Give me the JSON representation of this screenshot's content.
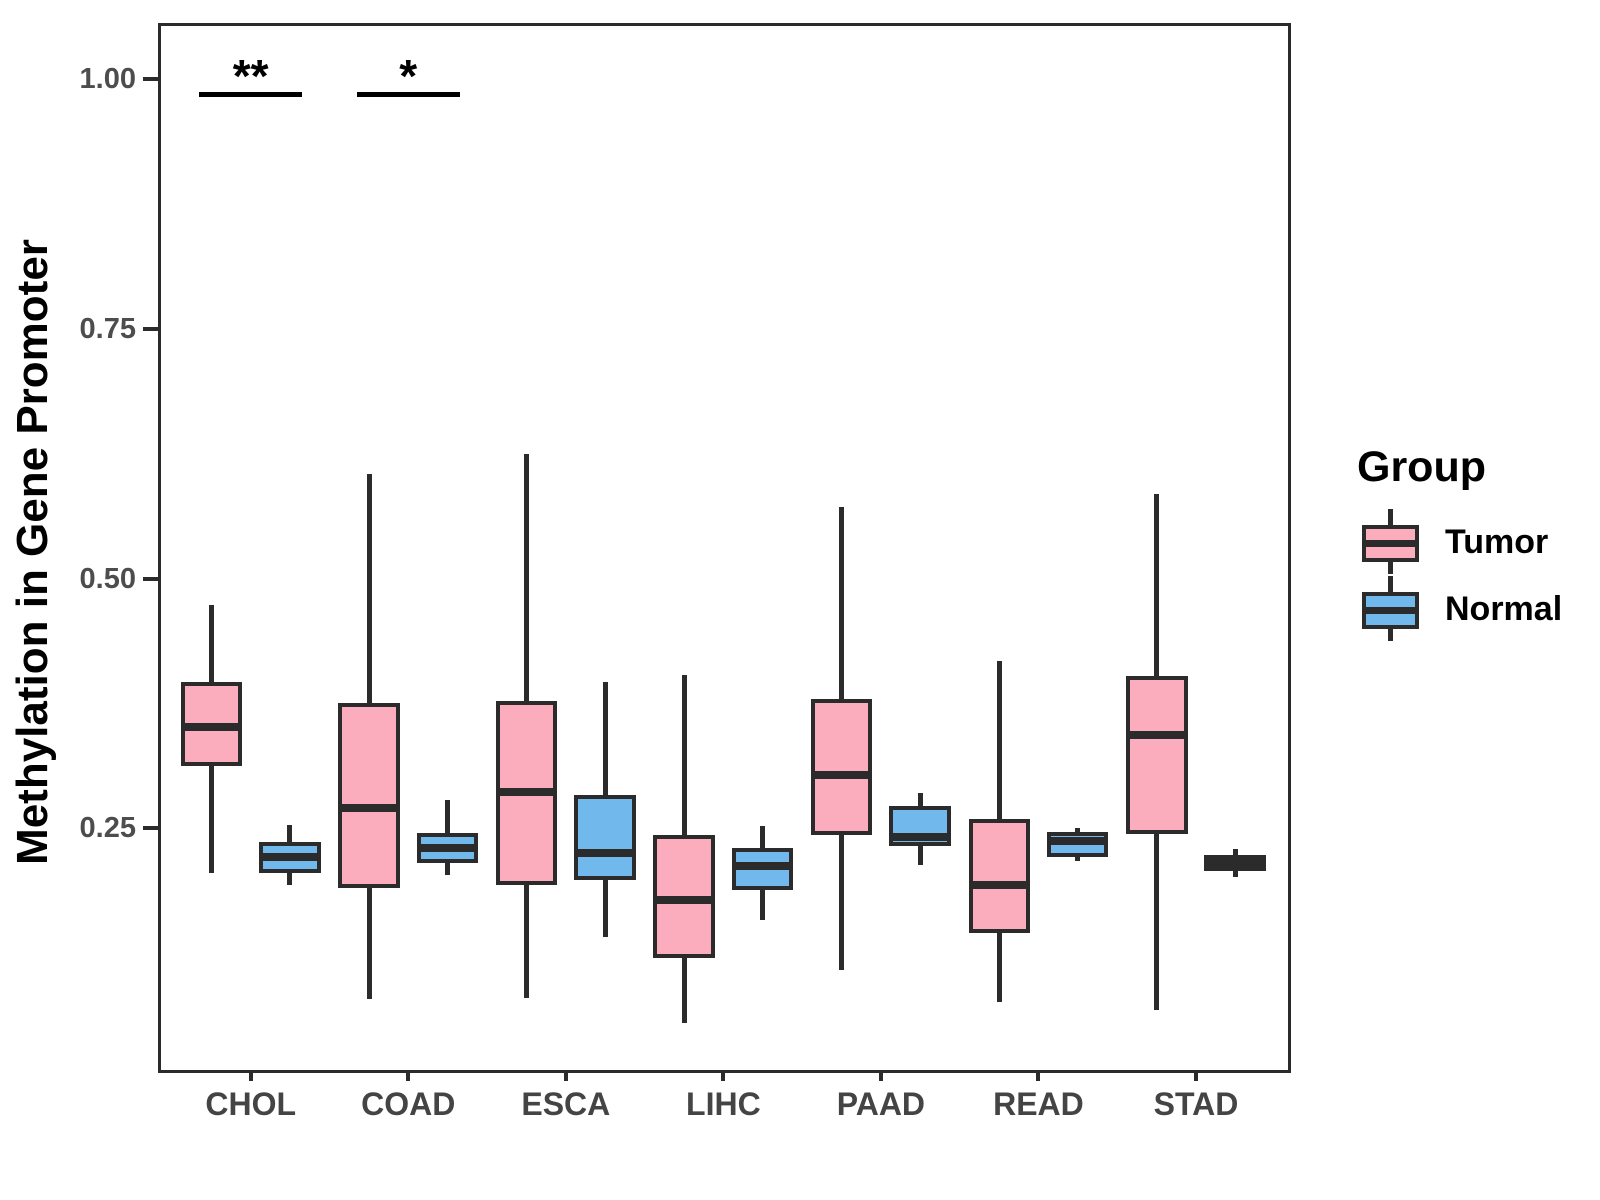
{
  "chart_data": {
    "type": "boxplot",
    "title": "",
    "xlabel": "",
    "ylabel": "Methylation in Gene Promoter",
    "categories": [
      "CHOL",
      "COAD",
      "ESCA",
      "LIHC",
      "PAAD",
      "READ",
      "STAD"
    ],
    "y_ticks": [
      {
        "label": "1.00",
        "value": 1.0
      },
      {
        "label": "0.75",
        "value": 0.75
      },
      {
        "label": "0.50",
        "value": 0.5
      },
      {
        "label": "0.25",
        "value": 0.25
      }
    ],
    "ylim": [
      0.005,
      1.055
    ],
    "grid": false,
    "legend_position": "right",
    "legend": {
      "title": "Group",
      "entries": [
        {
          "label": "Tumor",
          "color": "#FBADBE"
        },
        {
          "label": "Normal",
          "color": "#71B9ED"
        }
      ]
    },
    "series": [
      {
        "name": "Tumor",
        "color": "#FBADBE",
        "boxes": [
          {
            "category": "CHOL",
            "whisker_low": 0.205,
            "q1": 0.312,
            "median": 0.351,
            "q3": 0.396,
            "whisker_high": 0.474
          },
          {
            "category": "COAD",
            "whisker_low": 0.079,
            "q1": 0.19,
            "median": 0.27,
            "q3": 0.375,
            "whisker_high": 0.605
          },
          {
            "category": "ESCA",
            "whisker_low": 0.08,
            "q1": 0.193,
            "median": 0.286,
            "q3": 0.377,
            "whisker_high": 0.625
          },
          {
            "category": "LIHC",
            "whisker_low": 0.055,
            "q1": 0.12,
            "median": 0.178,
            "q3": 0.243,
            "whisker_high": 0.403
          },
          {
            "category": "PAAD",
            "whisker_low": 0.108,
            "q1": 0.243,
            "median": 0.303,
            "q3": 0.379,
            "whisker_high": 0.572
          },
          {
            "category": "READ",
            "whisker_low": 0.076,
            "q1": 0.145,
            "median": 0.193,
            "q3": 0.259,
            "whisker_high": 0.418
          },
          {
            "category": "STAD",
            "whisker_low": 0.068,
            "q1": 0.244,
            "median": 0.343,
            "q3": 0.402,
            "whisker_high": 0.585
          }
        ]
      },
      {
        "name": "Normal",
        "color": "#71B9ED",
        "boxes": [
          {
            "category": "CHOL",
            "whisker_low": 0.193,
            "q1": 0.205,
            "median": 0.221,
            "q3": 0.236,
            "whisker_high": 0.253
          },
          {
            "category": "COAD",
            "whisker_low": 0.203,
            "q1": 0.215,
            "median": 0.23,
            "q3": 0.245,
            "whisker_high": 0.278
          },
          {
            "category": "ESCA",
            "whisker_low": 0.141,
            "q1": 0.198,
            "median": 0.225,
            "q3": 0.283,
            "whisker_high": 0.396
          },
          {
            "category": "LIHC",
            "whisker_low": 0.158,
            "q1": 0.188,
            "median": 0.212,
            "q3": 0.23,
            "whisker_high": 0.252
          },
          {
            "category": "PAAD",
            "whisker_low": 0.213,
            "q1": 0.232,
            "median": 0.241,
            "q3": 0.272,
            "whisker_high": 0.285
          },
          {
            "category": "READ",
            "whisker_low": 0.217,
            "q1": 0.221,
            "median": 0.237,
            "q3": 0.246,
            "whisker_high": 0.25
          },
          {
            "category": "STAD",
            "whisker_low": 0.201,
            "q1": 0.207,
            "median": 0.215,
            "q3": 0.223,
            "whisker_high": 0.229
          }
        ]
      }
    ],
    "significance": [
      {
        "category": "CHOL",
        "label": "**",
        "bar_value": 0.987
      },
      {
        "category": "COAD",
        "label": "*",
        "bar_value": 0.987
      }
    ]
  },
  "colors": {
    "box_border": "#2b2b2b",
    "axis_line": "#2b2b2b",
    "axis_text": "#4d4d4d",
    "title_text": "#000000",
    "background": "#ffffff"
  }
}
